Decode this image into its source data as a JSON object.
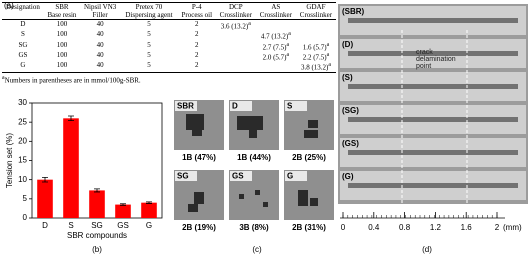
{
  "table": {
    "label": "(a)",
    "header": [
      "Designation",
      "SBR",
      "Nipsil VN3",
      "Pretex 70",
      "P-4",
      "DCP",
      "AS",
      "GDAF"
    ],
    "subheader": [
      null,
      "Base resin",
      "Filler",
      "Dispersing agent",
      "Process oil",
      "Crosslinker",
      "Crosslinker",
      "Crosslinker"
    ],
    "rows": [
      [
        "D",
        100,
        40,
        5,
        2,
        "3.6 (13.2)",
        null,
        null
      ],
      [
        "S",
        100,
        40,
        5,
        2,
        null,
        "4.7 (13.2)",
        null
      ],
      [
        "SG",
        100,
        40,
        5,
        2,
        null,
        "2.7 (7.5)",
        "1.6 (5.7)"
      ],
      [
        "GS",
        100,
        40,
        5,
        2,
        null,
        "2.0 (5.7)",
        "2.2 (7.5)"
      ],
      [
        "G",
        100,
        40,
        5,
        2,
        null,
        null,
        "3.8 (13.2)"
      ]
    ],
    "note_mark": "a",
    "note": "Numbers in parentheses are in mmol/100g-SBR."
  },
  "chart_data": {
    "type": "bar",
    "label": "(b)",
    "xlabel": "SBR compounds",
    "ylabel": "Tension set (%)",
    "categories": [
      "D",
      "S",
      "SG",
      "GS",
      "G"
    ],
    "values": [
      10,
      26,
      7.2,
      3.5,
      4
    ],
    "errors": [
      0.6,
      0.6,
      0.4,
      0.2,
      0.2
    ],
    "color": "#ff0000",
    "ylim": [
      0,
      30
    ],
    "yticks": [
      0,
      5,
      10,
      15,
      20,
      25,
      30
    ]
  },
  "tiles": {
    "label": "(c)",
    "items": [
      {
        "name": "SBR",
        "caption": "1B (47%)"
      },
      {
        "name": "D",
        "caption": "1B (44%)"
      },
      {
        "name": "S",
        "caption": "2B (25%)"
      },
      {
        "name": "SG",
        "caption": "2B (19%)"
      },
      {
        "name": "GS",
        "caption": "3B (8%)"
      },
      {
        "name": "G",
        "caption": "2B (31%)"
      }
    ]
  },
  "strips": {
    "label": "(d)",
    "names": [
      "(SBR)",
      "(D)",
      "(S)",
      "(SG)",
      "(GS)",
      "(G)"
    ],
    "annotation": "crack delamination point",
    "scale_ticks": [
      0,
      0.4,
      0.8,
      1.2,
      1.6,
      2
    ],
    "scale_unit": "(mm)"
  }
}
